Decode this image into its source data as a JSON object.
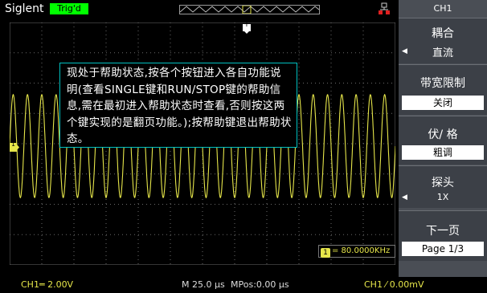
{
  "topbar": {
    "brand": "Siglent",
    "trig_status": "Trig'd"
  },
  "help_text": "现处于帮助状态,按各个按钮进入各自功能说明(查看SINGLE键和RUN/STOP键的帮助信息,需在最初进入帮助状态时查看,否则按这两个键实现的是翻页功能。);按帮助键退出帮助状态。",
  "markers": {
    "channel": "1",
    "trigger": "T"
  },
  "frequency": "= 80.0000KHz",
  "bottombar": {
    "channel_scale": "CH1═ 2.00V",
    "timebase": "M 25.0 µs",
    "mpos": "MPos:0.00 µs",
    "trigger": "CH1 ⁄ 0.00mV"
  },
  "menu": {
    "title": "CH1",
    "coupling": {
      "label": "耦合",
      "value": "直流"
    },
    "bandwidth": {
      "label": "带宽限制",
      "value": "关闭"
    },
    "volts_div": {
      "label": "伏/ 格",
      "value": "粗调"
    },
    "probe": {
      "label": "探头",
      "value": "1X"
    },
    "next_page": {
      "label": "下一页",
      "value": "Page 1/3"
    }
  },
  "colors": {
    "waveform": "#e6e64a",
    "trig_badge": "#00ff00",
    "help_border": "#00c0c0",
    "menu_bg": "#4a4e55"
  },
  "waveform": {
    "cycles_on_screen": 27,
    "amplitude_divs": 1.7
  }
}
